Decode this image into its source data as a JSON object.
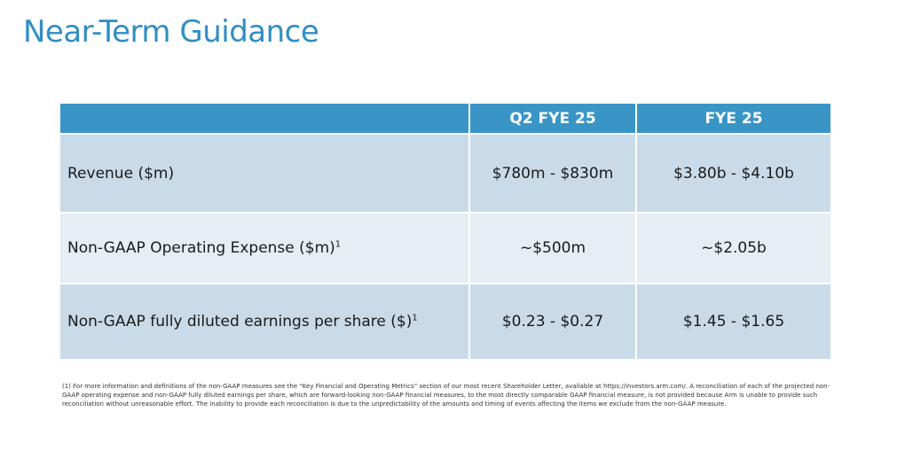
{
  "title": "Near-Term Guidance",
  "table": {
    "columns": [
      "",
      "Q2 FYE 25",
      "FYE 25"
    ],
    "rows": [
      {
        "label": "Revenue ($m)",
        "sup": "",
        "q2": "$780m - $830m",
        "fye": "$3.80b - $4.10b"
      },
      {
        "label": "Non-GAAP Operating Expense ($m)",
        "sup": "1",
        "q2": "~$500m",
        "fye": "~$2.05b"
      },
      {
        "label": "Non-GAAP fully diluted earnings per share ($)",
        "sup": "1",
        "q2": "$0.23 - $0.27",
        "fye": "$1.45 - $1.65"
      }
    ]
  },
  "footnote": "(1) For more information and definitions of the non-GAAP measures see the “Key Financial and Operating Metrics” section of our most recent Shareholder Letter, available at https://investors.arm.com/. A reconciliation of each of the projected non-GAAP operating expense and non-GAAP fully diluted earnings per share, which are forward-looking non-GAAP financial measures, to the most directly comparable GAAP financial measure, is not provided because Arm is unable to provide such reconciliation without unreasonable effort. The inability to provide each reconciliation is due to the unpredictability of the amounts and timing of events affecting the items we exclude from the non-GAAP measure.",
  "colors": {
    "title": "#2f8ec4",
    "header_bg": "#3995c6",
    "row_dark": "#c9dbe8",
    "row_light": "#e6eef4"
  }
}
